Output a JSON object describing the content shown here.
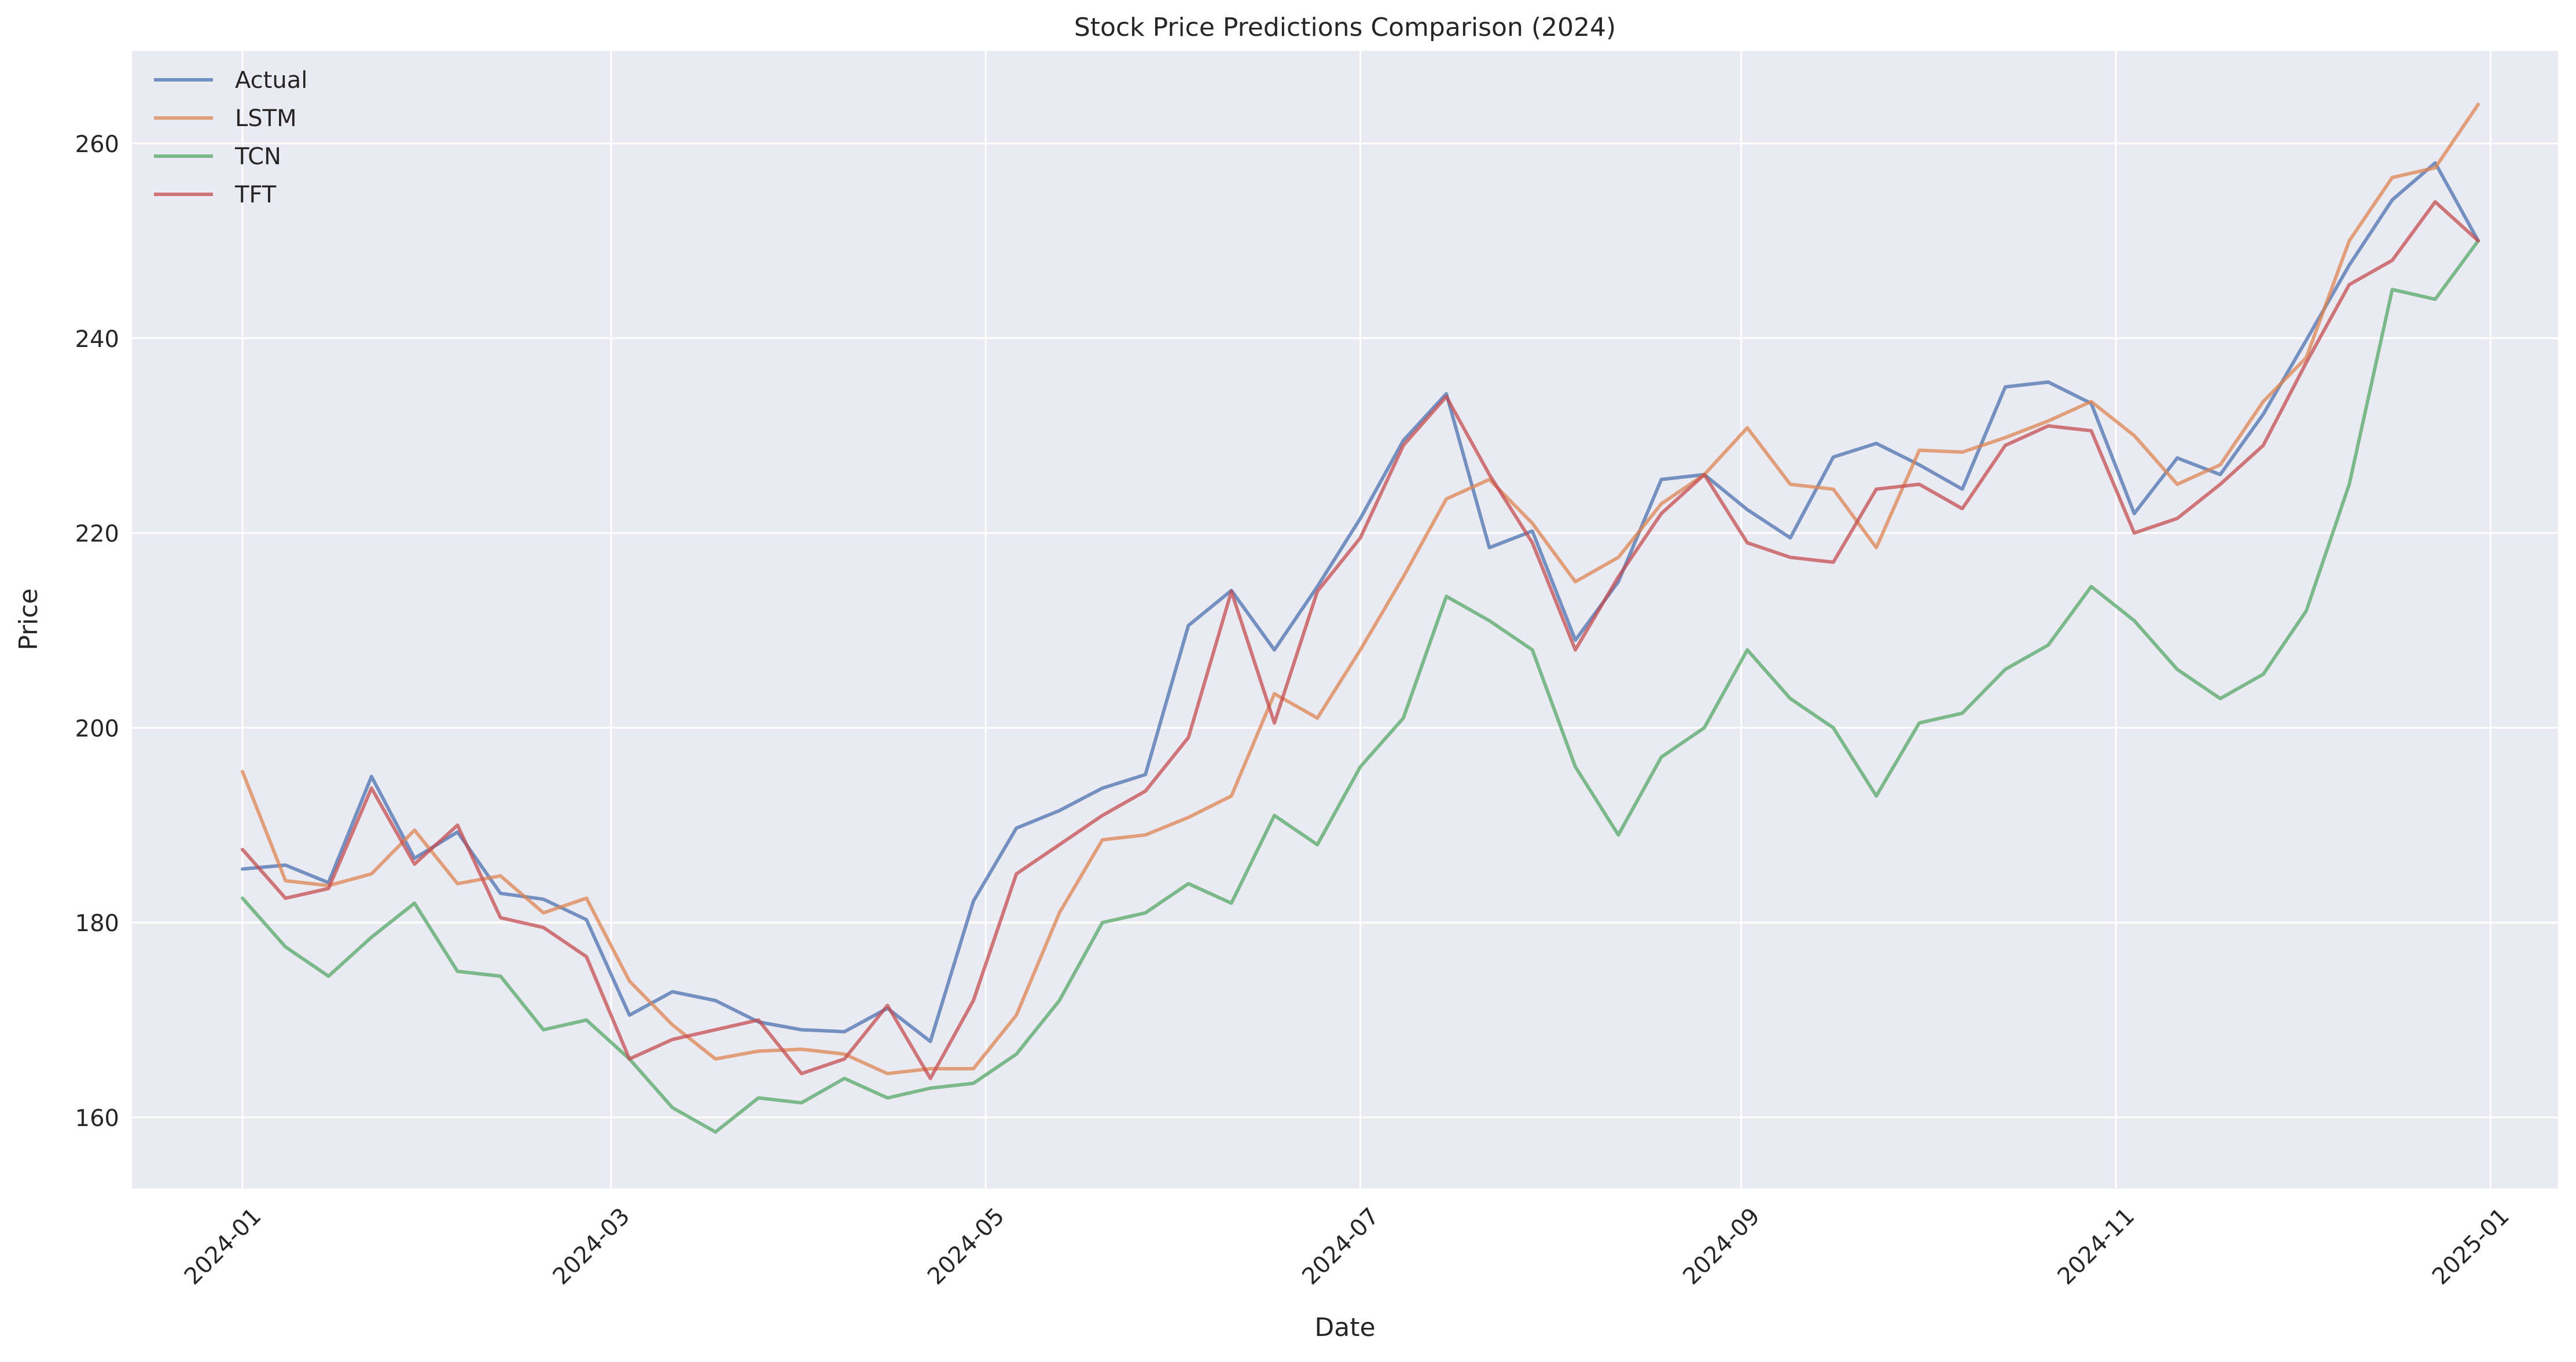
{
  "chart_data": {
    "type": "line",
    "title": "Stock Price Predictions Comparison (2024)",
    "xlabel": "Date",
    "ylabel": "Price",
    "x_type": "date",
    "xlim": [
      "2023-12-14",
      "2025-01-12"
    ],
    "ylim": [
      152.7,
      269.5
    ],
    "x_ticks": [
      "2024-01-01",
      "2024-03-01",
      "2024-05-01",
      "2024-07-01",
      "2024-09-01",
      "2024-11-01",
      "2025-01-01"
    ],
    "x_tick_labels": [
      "2024-01",
      "2024-03",
      "2024-05",
      "2024-07",
      "2024-09",
      "2024-11",
      "2025-01"
    ],
    "y_ticks": [
      160,
      180,
      200,
      220,
      240,
      260
    ],
    "grid": true,
    "legend_position": "top-left",
    "series": [
      {
        "name": "Actual",
        "color": "#4C72B0",
        "x": [
          "2024-01-01",
          "2024-01-08",
          "2024-01-15",
          "2024-01-22",
          "2024-01-29",
          "2024-02-05",
          "2024-02-12",
          "2024-02-19",
          "2024-02-26",
          "2024-03-04",
          "2024-03-11",
          "2024-03-18",
          "2024-03-25",
          "2024-04-01",
          "2024-04-08",
          "2024-04-15",
          "2024-04-22",
          "2024-04-29",
          "2024-05-06",
          "2024-05-13",
          "2024-05-20",
          "2024-05-27",
          "2024-06-03",
          "2024-06-10",
          "2024-06-17",
          "2024-06-24",
          "2024-07-01",
          "2024-07-08",
          "2024-07-15",
          "2024-07-22",
          "2024-07-29",
          "2024-08-05",
          "2024-08-12",
          "2024-08-19",
          "2024-08-26",
          "2024-09-02",
          "2024-09-09",
          "2024-09-16",
          "2024-09-23",
          "2024-09-30",
          "2024-10-07",
          "2024-10-14",
          "2024-10-21",
          "2024-10-28",
          "2024-11-04",
          "2024-11-11",
          "2024-11-18",
          "2024-11-25",
          "2024-12-02",
          "2024-12-09",
          "2024-12-16",
          "2024-12-23",
          "2024-12-30"
        ],
        "values": [
          185.5,
          185.9,
          184.1,
          195.0,
          186.6,
          189.3,
          183.0,
          182.4,
          180.3,
          170.5,
          172.9,
          172.0,
          169.8,
          169.0,
          168.8,
          171.2,
          167.8,
          182.2,
          189.7,
          191.5,
          193.8,
          195.2,
          210.5,
          214.1,
          208.0,
          214.5,
          221.5,
          229.5,
          234.3,
          218.5,
          220.2,
          209.0,
          215.0,
          225.5,
          226.0,
          222.4,
          219.5,
          227.8,
          229.2,
          227.0,
          224.5,
          235.0,
          235.5,
          233.3,
          222.0,
          227.7,
          226.0,
          232.2,
          239.8,
          247.5,
          254.2,
          258.0,
          250.0
        ]
      },
      {
        "name": "LSTM",
        "color": "#DD8452",
        "x": [
          "2024-01-01",
          "2024-01-08",
          "2024-01-15",
          "2024-01-22",
          "2024-01-29",
          "2024-02-05",
          "2024-02-12",
          "2024-02-19",
          "2024-02-26",
          "2024-03-04",
          "2024-03-11",
          "2024-03-18",
          "2024-03-25",
          "2024-04-01",
          "2024-04-08",
          "2024-04-15",
          "2024-04-22",
          "2024-04-29",
          "2024-05-06",
          "2024-05-13",
          "2024-05-20",
          "2024-05-27",
          "2024-06-03",
          "2024-06-10",
          "2024-06-17",
          "2024-06-24",
          "2024-07-01",
          "2024-07-08",
          "2024-07-15",
          "2024-07-22",
          "2024-07-29",
          "2024-08-05",
          "2024-08-12",
          "2024-08-19",
          "2024-08-26",
          "2024-09-02",
          "2024-09-09",
          "2024-09-16",
          "2024-09-23",
          "2024-09-30",
          "2024-10-07",
          "2024-10-14",
          "2024-10-21",
          "2024-10-28",
          "2024-11-04",
          "2024-11-11",
          "2024-11-18",
          "2024-11-25",
          "2024-12-02",
          "2024-12-09",
          "2024-12-16",
          "2024-12-23",
          "2024-12-30"
        ],
        "values": [
          195.5,
          184.3,
          183.8,
          185.0,
          189.5,
          184.0,
          184.8,
          181.0,
          182.5,
          174.0,
          169.5,
          166.0,
          166.8,
          167.0,
          166.5,
          164.5,
          165.0,
          165.0,
          170.5,
          181.0,
          188.5,
          189.0,
          190.8,
          193.0,
          203.5,
          201.0,
          208.0,
          215.5,
          223.5,
          225.5,
          221.0,
          215.0,
          217.5,
          223.0,
          226.0,
          230.8,
          225.0,
          224.5,
          218.5,
          228.5,
          228.3,
          229.8,
          231.5,
          233.5,
          230.0,
          225.0,
          227.0,
          233.5,
          238.0,
          250.0,
          256.5,
          257.5,
          264.0
        ]
      },
      {
        "name": "TCN",
        "color": "#55A868",
        "x": [
          "2024-01-01",
          "2024-01-08",
          "2024-01-15",
          "2024-01-22",
          "2024-01-29",
          "2024-02-05",
          "2024-02-12",
          "2024-02-19",
          "2024-02-26",
          "2024-03-04",
          "2024-03-11",
          "2024-03-18",
          "2024-03-25",
          "2024-04-01",
          "2024-04-08",
          "2024-04-15",
          "2024-04-22",
          "2024-04-29",
          "2024-05-06",
          "2024-05-13",
          "2024-05-20",
          "2024-05-27",
          "2024-06-03",
          "2024-06-10",
          "2024-06-17",
          "2024-06-24",
          "2024-07-01",
          "2024-07-08",
          "2024-07-15",
          "2024-07-22",
          "2024-07-29",
          "2024-08-05",
          "2024-08-12",
          "2024-08-19",
          "2024-08-26",
          "2024-09-02",
          "2024-09-09",
          "2024-09-16",
          "2024-09-23",
          "2024-09-30",
          "2024-10-07",
          "2024-10-14",
          "2024-10-21",
          "2024-10-28",
          "2024-11-04",
          "2024-11-11",
          "2024-11-18",
          "2024-11-25",
          "2024-12-02",
          "2024-12-09",
          "2024-12-16",
          "2024-12-23",
          "2024-12-30"
        ],
        "values": [
          182.5,
          177.5,
          174.5,
          178.5,
          182.0,
          175.0,
          174.5,
          169.0,
          170.0,
          166.0,
          161.0,
          158.5,
          162.0,
          161.5,
          164.0,
          162.0,
          163.0,
          163.5,
          166.5,
          172.0,
          180.0,
          181.0,
          184.0,
          182.0,
          191.0,
          188.0,
          196.0,
          201.0,
          213.5,
          211.0,
          208.0,
          196.0,
          189.0,
          197.0,
          200.0,
          208.0,
          203.0,
          200.0,
          193.0,
          200.5,
          201.5,
          206.0,
          208.5,
          214.5,
          211.0,
          206.0,
          203.0,
          205.5,
          212.0,
          225.0,
          245.0,
          244.0,
          250.0
        ]
      },
      {
        "name": "TFT",
        "color": "#C44E52",
        "x": [
          "2024-01-01",
          "2024-01-08",
          "2024-01-15",
          "2024-01-22",
          "2024-01-29",
          "2024-02-05",
          "2024-02-12",
          "2024-02-19",
          "2024-02-26",
          "2024-03-04",
          "2024-03-11",
          "2024-03-18",
          "2024-03-25",
          "2024-04-01",
          "2024-04-08",
          "2024-04-15",
          "2024-04-22",
          "2024-04-29",
          "2024-05-06",
          "2024-05-13",
          "2024-05-20",
          "2024-05-27",
          "2024-06-03",
          "2024-06-10",
          "2024-06-17",
          "2024-06-24",
          "2024-07-01",
          "2024-07-08",
          "2024-07-15",
          "2024-07-22",
          "2024-07-29",
          "2024-08-05",
          "2024-08-12",
          "2024-08-19",
          "2024-08-26",
          "2024-09-02",
          "2024-09-09",
          "2024-09-16",
          "2024-09-23",
          "2024-09-30",
          "2024-10-07",
          "2024-10-14",
          "2024-10-21",
          "2024-10-28",
          "2024-11-04",
          "2024-11-11",
          "2024-11-18",
          "2024-11-25",
          "2024-12-02",
          "2024-12-09",
          "2024-12-16",
          "2024-12-23",
          "2024-12-30"
        ],
        "values": [
          187.5,
          182.5,
          183.5,
          193.8,
          186.0,
          190.0,
          180.5,
          179.5,
          176.5,
          166.0,
          168.0,
          169.0,
          170.0,
          164.5,
          166.0,
          171.5,
          164.0,
          172.0,
          185.0,
          188.0,
          191.0,
          193.5,
          199.0,
          214.0,
          200.5,
          214.0,
          219.5,
          229.0,
          234.0,
          226.0,
          219.0,
          208.0,
          215.5,
          222.0,
          226.0,
          219.0,
          217.5,
          217.0,
          224.5,
          225.0,
          222.5,
          229.0,
          231.0,
          230.5,
          220.0,
          221.5,
          225.0,
          229.0,
          237.5,
          245.5,
          248.0,
          254.0,
          250.0
        ]
      }
    ]
  }
}
